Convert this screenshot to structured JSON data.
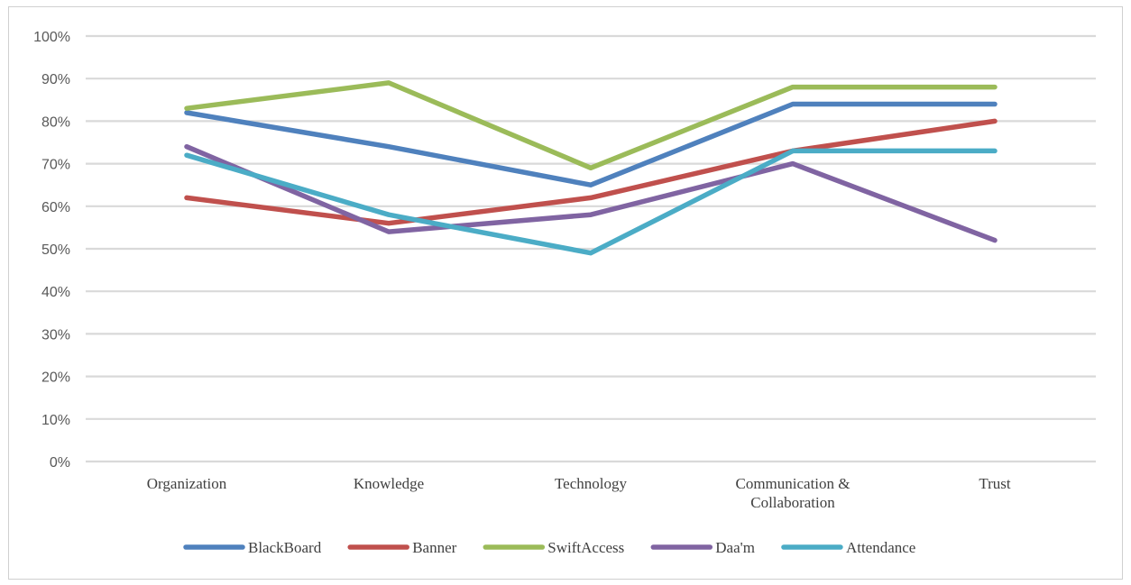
{
  "chart_data": {
    "type": "line",
    "title": "",
    "xlabel": "",
    "ylabel": "",
    "categories": [
      [
        "Organization"
      ],
      [
        "Knowledge"
      ],
      [
        "Technology"
      ],
      [
        "Communication &",
        "Collaboration"
      ],
      [
        "Trust"
      ]
    ],
    "ylim": [
      0,
      100
    ],
    "y_ticks": [
      "0%",
      "10%",
      "20%",
      "30%",
      "40%",
      "50%",
      "60%",
      "70%",
      "80%",
      "90%",
      "100%"
    ],
    "y_tick_values": [
      0,
      10,
      20,
      30,
      40,
      50,
      60,
      70,
      80,
      90,
      100
    ],
    "grid": true,
    "legend_position": "bottom",
    "series": [
      {
        "name": "BlackBoard",
        "color": "#4f81bd",
        "values": [
          82,
          74,
          65,
          84,
          84
        ]
      },
      {
        "name": "Banner",
        "color": "#c0504d",
        "values": [
          62,
          56,
          62,
          73,
          80
        ]
      },
      {
        "name": "SwiftAccess",
        "color": "#9bbb59",
        "values": [
          83,
          89,
          69,
          88,
          88
        ]
      },
      {
        "name": "Daa'm",
        "color": "#8064a2",
        "values": [
          74,
          54,
          58,
          70,
          52
        ]
      },
      {
        "name": "Attendance",
        "color": "#4bacc6",
        "values": [
          72,
          58,
          49,
          73,
          73
        ]
      }
    ]
  }
}
